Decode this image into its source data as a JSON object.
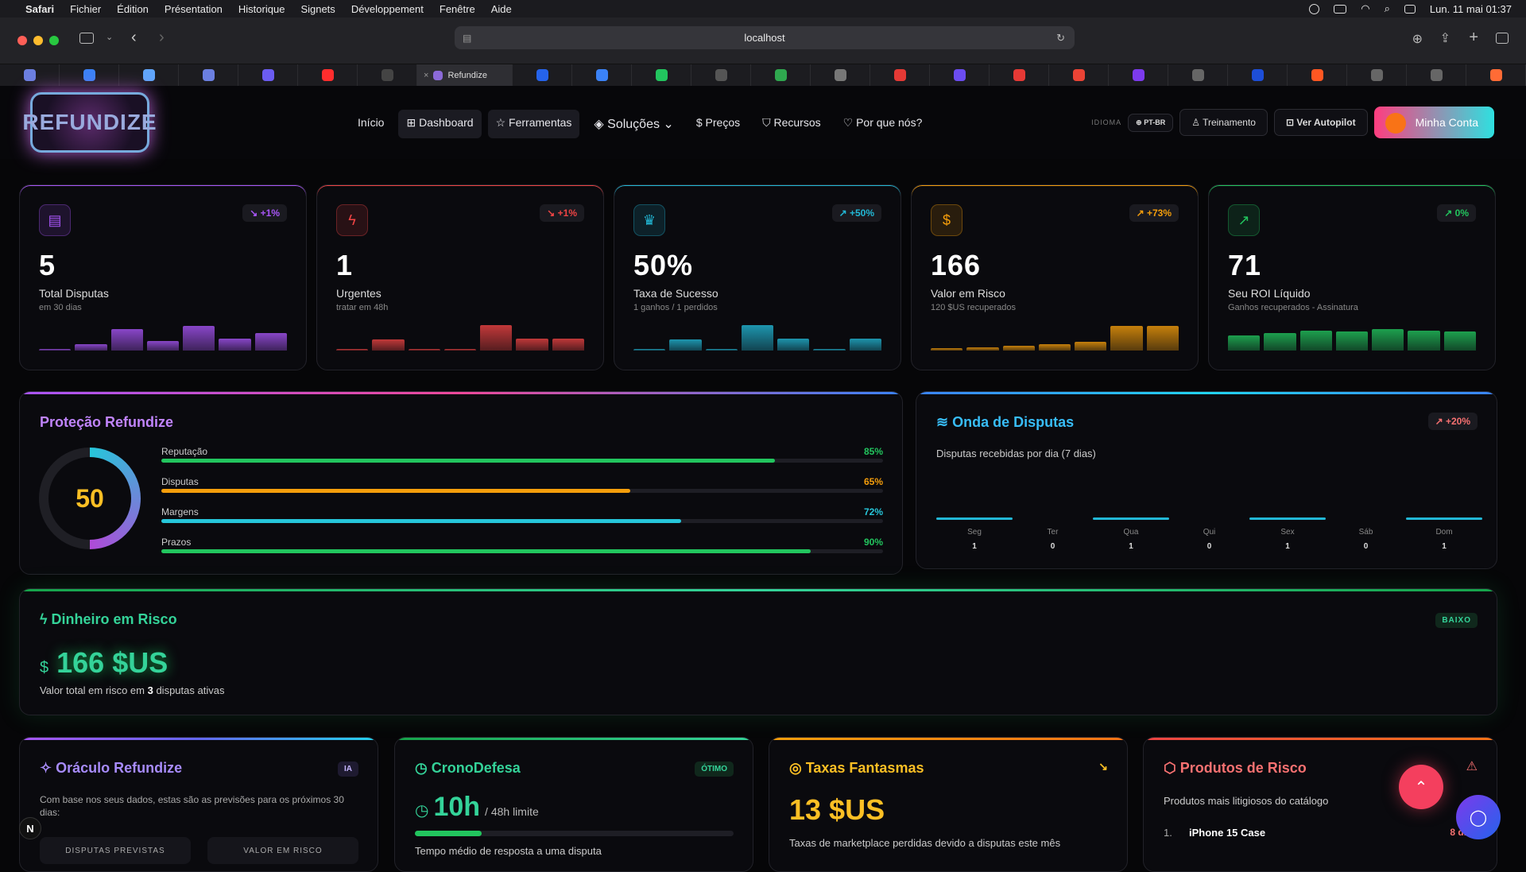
{
  "menubar": {
    "apple": "",
    "app": "Safari",
    "items": [
      "Fichier",
      "Édition",
      "Présentation",
      "Historique",
      "Signets",
      "Développement",
      "Fenêtre",
      "Aide"
    ],
    "datetime": "Lun. 11 mai 01:37"
  },
  "browser": {
    "url": "localhost",
    "active_tab": "Refundize",
    "tab_colors": [
      "#6b7fe0",
      "#3b82f6",
      "#60a5fa",
      "#6b7fe0",
      "#6b5cf0",
      "#ff2d2d",
      "#444",
      "#2563eb",
      "#3b82f6",
      "#22c55e",
      "#555",
      "#2fa84f",
      "#777",
      "#e53935",
      "#6b4cf0",
      "#e53935",
      "#ea4335",
      "#7c3aed",
      "#666",
      "#1d4ed8",
      "#ff5722",
      "#666",
      "#666",
      "#ff6b35"
    ]
  },
  "nav": {
    "logo": "REFUNDIZE",
    "links": [
      "Início",
      "Dashboard",
      "Ferramentas",
      "Soluções",
      "Preços",
      "Recursos",
      "Por que nós?"
    ],
    "lang_label": "IDIOMA",
    "lang": "PT-BR",
    "training": "Treinamento",
    "autopilot": "Ver Autopilot",
    "account": "Minha Conta"
  },
  "stats": [
    {
      "value": "5",
      "label": "Total Disputas",
      "sub": "em 30 dias",
      "badge": "↘ +1%",
      "color": "#a855f7",
      "bars": [
        0.05,
        0.25,
        0.8,
        0.35,
        0.9,
        0.45,
        0.65
      ]
    },
    {
      "value": "1",
      "label": "Urgentes",
      "sub": "tratar em 48h",
      "badge": "↘ +1%",
      "color": "#ef4444",
      "bars": [
        0.05,
        0.4,
        0.05,
        0.05,
        0.95,
        0.45,
        0.45
      ]
    },
    {
      "value": "50%",
      "label": "Taxa de Sucesso",
      "sub": "1 ganhos / 1 perdidos",
      "badge": "↗ +50%",
      "color": "#22b8d6",
      "bars": [
        0.05,
        0.4,
        0.05,
        0.95,
        0.45,
        0.05,
        0.45
      ]
    },
    {
      "value": "166",
      "label": "Valor em Risco",
      "sub": "120 $US recuperados",
      "badge": "↗ +73%",
      "color": "#f59e0b",
      "bars": [
        0.08,
        0.12,
        0.18,
        0.25,
        0.32,
        0.9,
        0.9
      ]
    },
    {
      "value": "71",
      "label": "Seu ROI Líquido",
      "sub": "Ganhos recuperados - Assinatura",
      "badge": "↗ 0%",
      "color": "#22c55e",
      "bars": [
        0.55,
        0.65,
        0.75,
        0.7,
        0.8,
        0.75,
        0.7
      ]
    }
  ],
  "protection": {
    "title": "Proteção Refundize",
    "score": "50",
    "score_fraction": 0.5,
    "rows": [
      {
        "label": "Reputação",
        "pct": "85%",
        "value": 0.85,
        "color": "#22c55e"
      },
      {
        "label": "Disputas",
        "pct": "65%",
        "value": 0.65,
        "color": "#f59e0b"
      },
      {
        "label": "Margens",
        "pct": "72%",
        "value": 0.72,
        "color": "#26c6da"
      },
      {
        "label": "Prazos",
        "pct": "90%",
        "value": 0.9,
        "color": "#22c55e"
      }
    ]
  },
  "wave": {
    "title": "Onda de Disputas",
    "badge": "↗ +20%",
    "subtitle": "Disputas recebidas por dia (7 dias)",
    "days": [
      {
        "d": "Seg",
        "n": "1"
      },
      {
        "d": "Ter",
        "n": "0"
      },
      {
        "d": "Qua",
        "n": "1"
      },
      {
        "d": "Qui",
        "n": "0"
      },
      {
        "d": "Sex",
        "n": "1"
      },
      {
        "d": "Sáb",
        "n": "0"
      },
      {
        "d": "Dom",
        "n": "1"
      }
    ]
  },
  "money": {
    "title": "Dinheiro em Risco",
    "badge": "BAIXO",
    "currency": "$",
    "amount": "166 $US",
    "desc_pre": "Valor total em risco em",
    "count": "3",
    "desc_post": "disputas ativas"
  },
  "oracle": {
    "title": "Oráculo Refundize",
    "badge": "IA",
    "text": "Com base nos seus dados, estas são as previsões para os próximos 30 dias:",
    "box1": "DISPUTAS PREVISTAS",
    "box2": "VALOR EM RISCO"
  },
  "crono": {
    "title": "CronoDefesa",
    "badge": "ÓTIMO",
    "value": "10h",
    "limit": "/ 48h limite",
    "progress": 0.21,
    "desc": "Tempo médio de resposta a uma disputa"
  },
  "taxas": {
    "title": "Taxas Fantasmas",
    "badge": "↘",
    "value": "13 $US",
    "desc": "Taxas de marketplace perdidas devido a disputas este mês"
  },
  "produtos": {
    "title": "Produtos de Risco",
    "subtitle": "Produtos mais litigiosos do catálogo",
    "item_num": "1.",
    "item": "iPhone 15 Case",
    "item_count": "8 disp"
  },
  "fab_letter": "N"
}
